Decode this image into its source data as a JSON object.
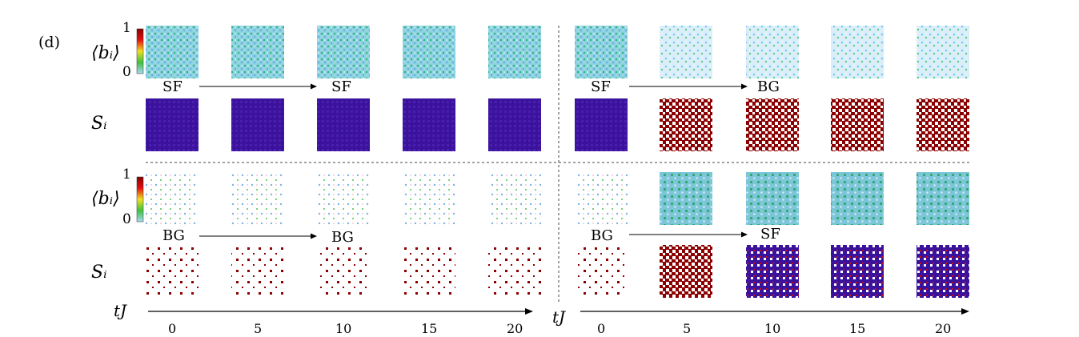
{
  "panel_label": "(d)",
  "row_labels": {
    "density": "⟨bᵢ⟩",
    "spin": "Sᵢ"
  },
  "colorbar": {
    "max_label": "1",
    "min_label": "0",
    "colors": [
      "#7ec8f0",
      "#3ec23e",
      "#f0e020",
      "#e81010",
      "#880000"
    ]
  },
  "transitions": {
    "top_left": {
      "from": "SF",
      "to": "SF"
    },
    "top_right": {
      "from": "SF",
      "to": "BG"
    },
    "bottom_left": {
      "from": "BG",
      "to": "BG"
    },
    "bottom_right": {
      "from": "BG",
      "to": "SF"
    }
  },
  "time_axis": {
    "label": "tJ",
    "left_ticks": [
      "0",
      "5",
      "10",
      "15",
      "20"
    ],
    "right_ticks": [
      "0",
      "5",
      "10",
      "15",
      "20"
    ]
  },
  "palette": {
    "sf_density_bg": "#8fd3e0",
    "sf_density_fg": "#2bb38a",
    "bg_density_fg": "#7ab4e8",
    "spin_up": "#3b129c",
    "spin_down": "#8b0000",
    "white": "#ffffff"
  }
}
